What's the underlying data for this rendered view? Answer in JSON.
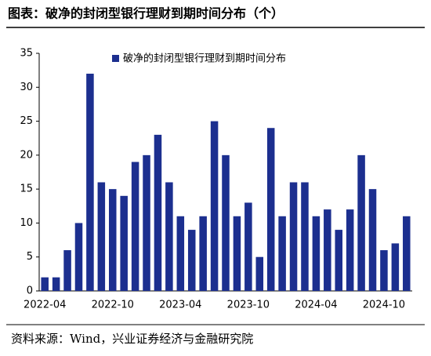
{
  "title": "图表：破净的封闭型银行理财到期时间分布（个）",
  "source": "资料来源：Wind，兴业证券经济与金融研究院",
  "chart_data": {
    "type": "bar",
    "categories": [
      "2022-04",
      null,
      null,
      null,
      null,
      null,
      "2022-10",
      null,
      null,
      null,
      null,
      null,
      "2023-04",
      null,
      null,
      null,
      null,
      null,
      "2023-10",
      null,
      null,
      null,
      null,
      null,
      "2024-04",
      null,
      null,
      null,
      null,
      null,
      "2024-10",
      null,
      null
    ],
    "series": [
      {
        "name": "破净的封闭型银行理财到期时间分布",
        "color": "#1c2f8f",
        "values": [
          2,
          2,
          6,
          10,
          32,
          16,
          15,
          14,
          19,
          20,
          23,
          16,
          11,
          9,
          11,
          25,
          20,
          11,
          13,
          5,
          24,
          11,
          16,
          16,
          11,
          12,
          9,
          12,
          20,
          15,
          6,
          7,
          11
        ]
      }
    ],
    "ylim": [
      0,
      35
    ],
    "yticks": [
      0,
      5,
      10,
      15,
      20,
      25,
      30,
      35
    ],
    "grid": false
  }
}
